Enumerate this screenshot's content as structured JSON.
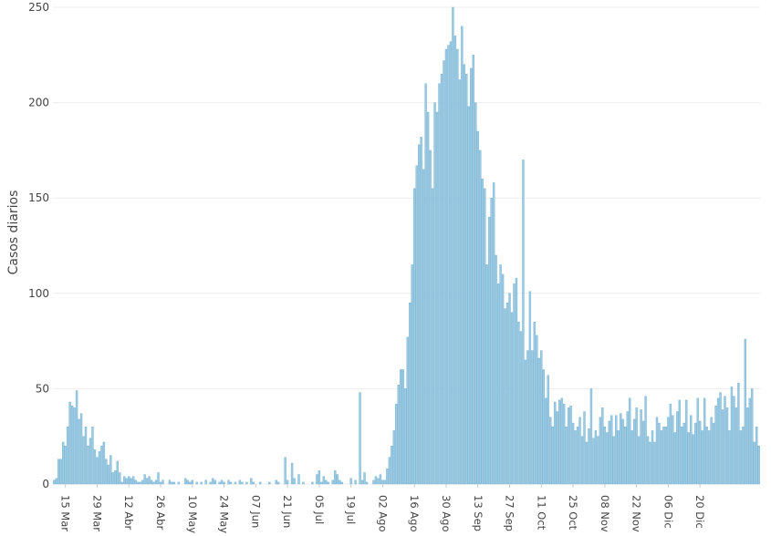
{
  "chart_data": {
    "type": "bar",
    "ylabel": "Casos diarios",
    "xlabel": "",
    "ylim": [
      0,
      250
    ],
    "yticks": [
      0,
      50,
      100,
      150,
      200,
      250
    ],
    "grid": true,
    "colors": {
      "bar": "#9ecae1",
      "bar_edge": "#6fb0d4",
      "grid": "#eeeeee",
      "text": "#444444"
    },
    "xticks": [
      {
        "label": "15 Mar",
        "day": 5
      },
      {
        "label": "29 Mar",
        "day": 19
      },
      {
        "label": "12 Abr",
        "day": 33
      },
      {
        "label": "26 Abr",
        "day": 47
      },
      {
        "label": "10 May",
        "day": 61
      },
      {
        "label": "24 May",
        "day": 75
      },
      {
        "label": "07 Jun",
        "day": 89
      },
      {
        "label": "21 Jun",
        "day": 103
      },
      {
        "label": "05 Jul",
        "day": 117
      },
      {
        "label": "19 Jul",
        "day": 131
      },
      {
        "label": "02 Ago",
        "day": 145
      },
      {
        "label": "16 Ago",
        "day": 159
      },
      {
        "label": "30 Ago",
        "day": 173
      },
      {
        "label": "13 Sep",
        "day": 187
      },
      {
        "label": "27 Sep",
        "day": 201
      },
      {
        "label": "11 Oct",
        "day": 215
      },
      {
        "label": "25 Oct",
        "day": 229
      },
      {
        "label": "08 Nov",
        "day": 243
      },
      {
        "label": "22 Nov",
        "day": 257
      },
      {
        "label": "06 Dic",
        "day": 271
      },
      {
        "label": "20 Dic",
        "day": 285
      }
    ],
    "values": [
      2,
      3,
      13,
      13,
      22,
      20,
      30,
      43,
      41,
      40,
      49,
      34,
      37,
      25,
      30,
      20,
      24,
      30,
      18,
      14,
      17,
      20,
      22,
      13,
      10,
      15,
      6,
      7,
      12,
      6,
      1,
      4,
      3,
      4,
      3,
      4,
      2,
      1,
      1,
      2,
      5,
      3,
      4,
      2,
      1,
      2,
      6,
      1,
      2,
      0,
      0,
      2,
      1,
      1,
      0,
      1,
      0,
      0,
      3,
      2,
      1,
      2,
      0,
      1,
      0,
      1,
      0,
      2,
      0,
      1,
      3,
      2,
      0,
      1,
      2,
      1,
      0,
      2,
      1,
      0,
      1,
      0,
      2,
      1,
      0,
      1,
      0,
      3,
      1,
      0,
      0,
      1,
      0,
      0,
      0,
      1,
      0,
      0,
      2,
      1,
      0,
      0,
      14,
      2,
      0,
      11,
      3,
      0,
      5,
      0,
      1,
      0,
      0,
      0,
      1,
      0,
      5,
      7,
      1,
      4,
      2,
      1,
      0,
      2,
      7,
      5,
      2,
      1,
      0,
      0,
      0,
      3,
      0,
      2,
      0,
      48,
      2,
      6,
      1,
      0,
      0,
      2,
      4,
      3,
      5,
      2,
      2,
      8,
      14,
      20,
      28,
      42,
      52,
      60,
      60,
      50,
      77,
      95,
      115,
      155,
      167,
      178,
      182,
      165,
      210,
      195,
      175,
      155,
      200,
      195,
      210,
      215,
      222,
      228,
      230,
      232,
      250,
      235,
      228,
      212,
      240,
      220,
      215,
      198,
      218,
      225,
      200,
      185,
      175,
      160,
      155,
      115,
      140,
      150,
      158,
      120,
      105,
      115,
      110,
      92,
      95,
      100,
      90,
      105,
      108,
      85,
      80,
      170,
      65,
      70,
      101,
      70,
      85,
      78,
      66,
      70,
      60,
      45,
      57,
      35,
      30,
      43,
      38,
      44,
      45,
      42,
      30,
      40,
      41,
      32,
      28,
      30,
      35,
      25,
      38,
      22,
      29,
      50,
      24,
      28,
      25,
      35,
      40,
      30,
      27,
      33,
      36,
      25,
      36,
      28,
      37,
      34,
      30,
      38,
      45,
      28,
      34,
      40,
      25,
      39,
      33,
      46,
      25,
      22,
      28,
      22,
      35,
      32,
      28,
      30,
      30,
      35,
      42,
      36,
      27,
      38,
      44,
      30,
      32,
      44,
      27,
      36,
      26,
      32,
      45,
      33,
      28,
      45,
      30,
      28,
      35,
      32,
      41,
      45,
      48,
      39,
      46,
      40,
      28,
      51,
      46,
      40,
      53,
      28,
      30,
      76,
      40,
      45,
      50,
      22,
      30,
      20
    ]
  }
}
